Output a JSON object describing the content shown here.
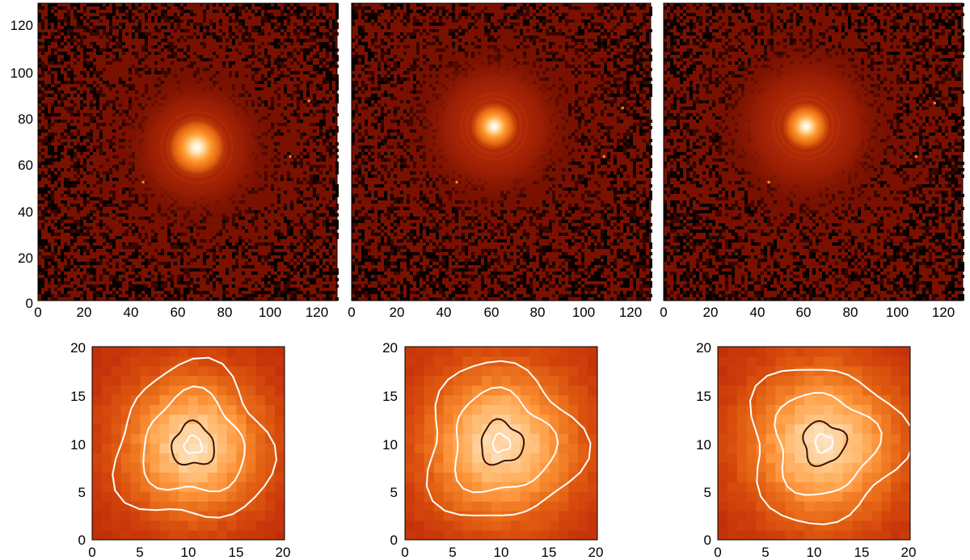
{
  "colors": {
    "background": "#ffffff",
    "colormap": "hot-red",
    "contour_dark": "#3a1505",
    "contour_light": "#ffffff"
  },
  "top_row": {
    "axis_ticks": [
      "0",
      "20",
      "40",
      "60",
      "80",
      "100",
      "120"
    ],
    "panels": [
      {
        "peak": [
          68,
          66
        ],
        "core": 10,
        "halo": 40,
        "sparkles": [
          [
            116,
            86
          ],
          [
            108,
            62
          ],
          [
            45,
            51
          ]
        ]
      },
      {
        "peak": [
          61,
          75
        ],
        "core": 8,
        "halo": 42,
        "sparkles": [
          [
            116,
            83
          ],
          [
            108,
            62
          ],
          [
            45,
            51
          ]
        ]
      },
      {
        "peak": [
          61,
          75
        ],
        "core": 8,
        "halo": 44,
        "sparkles": [
          [
            116,
            85
          ],
          [
            108,
            62
          ],
          [
            45,
            51
          ]
        ]
      }
    ]
  },
  "bottom_row": {
    "axis_ticks": [
      "0",
      "5",
      "10",
      "15",
      "20"
    ],
    "panels": [
      {
        "peak": [
          10.5,
          9.8
        ],
        "spread": 5.5
      },
      {
        "peak": [
          10,
          10
        ],
        "spread": 6
      },
      {
        "peak": [
          11,
          10
        ],
        "spread": 6
      }
    ]
  }
}
